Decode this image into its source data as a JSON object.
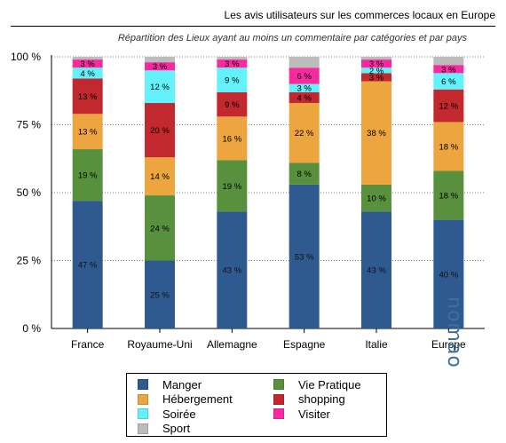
{
  "title": "Les avis utilisateurs sur les commerces locaux en Europe",
  "subtitle": "Répartition des Lieux ayant au moins un commentaire par catégories et par pays",
  "brand": "nomao",
  "colors": {
    "Manger": "#2f5a8f",
    "Hébergement": "#eca53f",
    "Soirée": "#63f2fb",
    "Sport": "#bcbcbc",
    "Vie Pratique": "#59903e",
    "shopping": "#c1292e",
    "Visiter": "#f72a9f"
  },
  "chart_data": {
    "type": "bar",
    "stacked": true,
    "categories": [
      "France",
      "Royaume-Uni",
      "Allemagne",
      "Espagne",
      "Italie",
      "Europe"
    ],
    "ylim": [
      0,
      100
    ],
    "yticks": [
      0,
      25,
      50,
      75,
      100
    ],
    "ytick_labels": [
      "0 %",
      "25 %",
      "50 %",
      "75 %",
      "100 %"
    ],
    "grid": "dotted horizontal",
    "legend_position": "bottom",
    "value_suffix": " %",
    "series": [
      {
        "name": "Manger",
        "values": [
          47,
          25,
          43,
          53,
          43,
          40
        ]
      },
      {
        "name": "Vie Pratique",
        "values": [
          19,
          24,
          19,
          8,
          10,
          18
        ]
      },
      {
        "name": "Hébergement",
        "values": [
          13,
          14,
          16,
          22,
          38,
          18
        ]
      },
      {
        "name": "shopping",
        "values": [
          13,
          20,
          9,
          4,
          3,
          12
        ]
      },
      {
        "name": "Soirée",
        "values": [
          4,
          12,
          9,
          3,
          2,
          6
        ]
      },
      {
        "name": "Visiter",
        "values": [
          3,
          3,
          3,
          6,
          3,
          3
        ]
      },
      {
        "name": "Sport",
        "values": [
          1,
          2,
          1,
          4,
          1,
          3
        ]
      }
    ],
    "legend_order": [
      "Manger",
      "Vie Pratique",
      "Hébergement",
      "shopping",
      "Soirée",
      "Visiter",
      "Sport"
    ],
    "labeled_segments": [
      "Manger",
      "Vie Pratique",
      "Hébergement",
      "shopping",
      "Soirée",
      "Visiter"
    ]
  }
}
